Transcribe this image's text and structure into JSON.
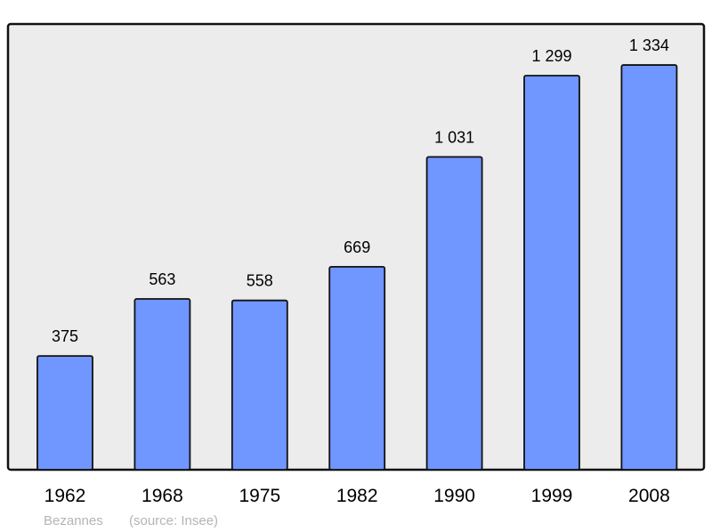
{
  "chart_data": {
    "type": "bar",
    "categories": [
      "1962",
      "1968",
      "1975",
      "1982",
      "1990",
      "1999",
      "2008"
    ],
    "values": [
      375,
      563,
      558,
      669,
      1031,
      1299,
      1334
    ],
    "value_labels": [
      "375",
      "563",
      "558",
      "669",
      "1 031",
      "1 299",
      "1 334"
    ],
    "title": "",
    "xlabel": "",
    "ylabel": "",
    "ylim": [
      0,
      1469
    ],
    "grid": false,
    "footer": {
      "place": "Bezannes",
      "source": "(source: Insee)"
    },
    "colors": {
      "bar": "#7096ff",
      "plot_bg": "#ececec",
      "border": "#111111",
      "footer_text": "#b4b4b4"
    }
  }
}
